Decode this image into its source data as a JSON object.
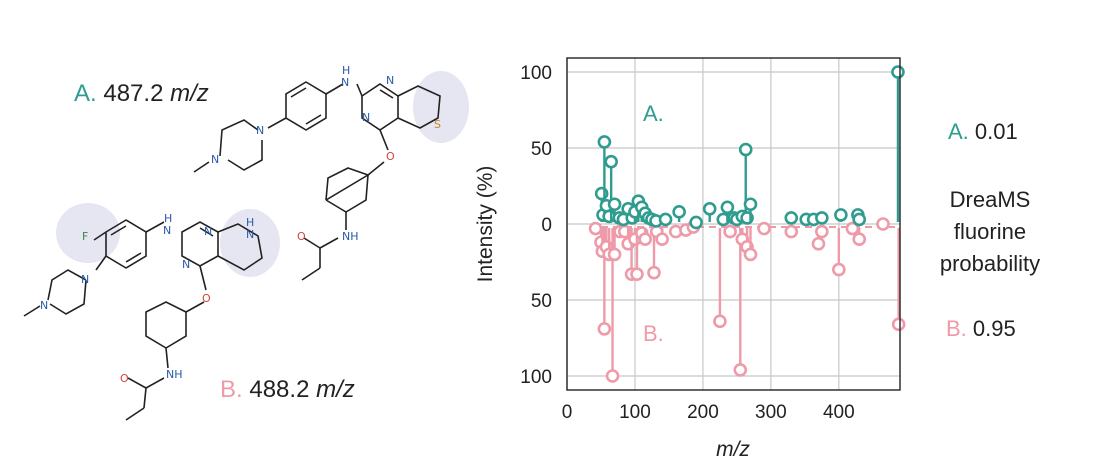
{
  "molecule_a": {
    "label": "A.",
    "mass": "487.2",
    "unit": "m/z"
  },
  "molecule_b": {
    "label": "B.",
    "mass": "488.2",
    "unit": "m/z"
  },
  "prediction": {
    "a_label": "A.",
    "a_value": "0.01",
    "b_label": "B.",
    "b_value": "0.95",
    "caption_line1": "DreaMS",
    "caption_line2": "fluorine",
    "caption_line3": "probability"
  },
  "colors": {
    "a": "#2f9c8f",
    "b": "#ee9aa8",
    "grid": "#c8c8c8",
    "halo": "#e6e6f2"
  },
  "chart_data": {
    "type": "stem",
    "title": "",
    "xlabel": "m/z",
    "ylabel": "Intensity (%)",
    "xlim": [
      0,
      490
    ],
    "ylim": [
      -100,
      100
    ],
    "xticks": [
      0,
      100,
      200,
      300,
      400
    ],
    "yticks": [
      100,
      50,
      0,
      50,
      100
    ],
    "panel_labels": [
      "A.",
      "B."
    ],
    "series": [
      {
        "name": "A.",
        "direction": "up",
        "points": [
          [
            51,
            20
          ],
          [
            53,
            6
          ],
          [
            55,
            54
          ],
          [
            58,
            12
          ],
          [
            62,
            5
          ],
          [
            65,
            41
          ],
          [
            70,
            13
          ],
          [
            77,
            4
          ],
          [
            83,
            3
          ],
          [
            90,
            10
          ],
          [
            96,
            4
          ],
          [
            100,
            8
          ],
          [
            105,
            15
          ],
          [
            110,
            11
          ],
          [
            115,
            7
          ],
          [
            120,
            4
          ],
          [
            125,
            3
          ],
          [
            131,
            2
          ],
          [
            145,
            3
          ],
          [
            165,
            8
          ],
          [
            190,
            1
          ],
          [
            210,
            10
          ],
          [
            230,
            3
          ],
          [
            236,
            11
          ],
          [
            246,
            4
          ],
          [
            250,
            3
          ],
          [
            258,
            5
          ],
          [
            263,
            49
          ],
          [
            265,
            4
          ],
          [
            270,
            13
          ],
          [
            330,
            4
          ],
          [
            352,
            3
          ],
          [
            363,
            3
          ],
          [
            375,
            4
          ],
          [
            403,
            6
          ],
          [
            428,
            6
          ],
          [
            430,
            3
          ],
          [
            487,
            100
          ]
        ]
      },
      {
        "name": "B.",
        "direction": "down",
        "points": [
          [
            42,
            3
          ],
          [
            50,
            12
          ],
          [
            52,
            18
          ],
          [
            55,
            69
          ],
          [
            58,
            15
          ],
          [
            62,
            20
          ],
          [
            67,
            100
          ],
          [
            70,
            20
          ],
          [
            78,
            5
          ],
          [
            85,
            5
          ],
          [
            90,
            13
          ],
          [
            95,
            33
          ],
          [
            100,
            10
          ],
          [
            103,
            33
          ],
          [
            110,
            6
          ],
          [
            115,
            10
          ],
          [
            128,
            32
          ],
          [
            132,
            5
          ],
          [
            140,
            10
          ],
          [
            160,
            5
          ],
          [
            175,
            4
          ],
          [
            186,
            2
          ],
          [
            225,
            64
          ],
          [
            240,
            5
          ],
          [
            255,
            96
          ],
          [
            258,
            10
          ],
          [
            265,
            15
          ],
          [
            270,
            20
          ],
          [
            290,
            3
          ],
          [
            330,
            5
          ],
          [
            370,
            13
          ],
          [
            375,
            5
          ],
          [
            400,
            30
          ],
          [
            420,
            3
          ],
          [
            430,
            10
          ],
          [
            465,
            0
          ],
          [
            488,
            66
          ]
        ]
      }
    ]
  }
}
